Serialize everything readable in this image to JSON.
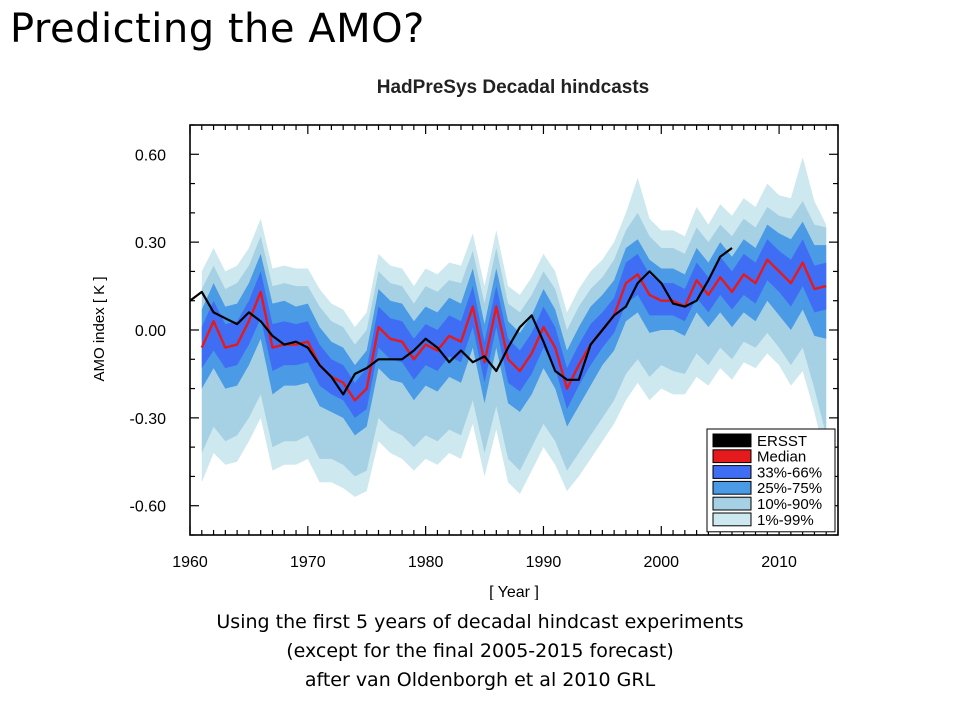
{
  "slide": {
    "title": "Predicting the AMO?",
    "caption": [
      "Using the first 5 years of decadal hindcast experiments",
      "(except for the final 2005-2015 forecast)",
      "after van Oldenborgh et al 2010 GRL"
    ]
  },
  "chart_data": {
    "type": "area",
    "title": "HadPreSys Decadal hindcasts",
    "xlabel": "[ Year ]",
    "ylabel": "AMO index [ K ]",
    "xlim": [
      1960,
      2015
    ],
    "ylim": [
      -0.7,
      0.7
    ],
    "xticks": [
      1960,
      1970,
      1980,
      1990,
      2000,
      2010
    ],
    "yticks": [
      -0.6,
      -0.3,
      0.0,
      0.3,
      0.6
    ],
    "ytick_labels": [
      "-0.60",
      "-0.30",
      "0.00",
      "0.30",
      "0.60"
    ],
    "legend_position": "bottom-right",
    "legend": [
      {
        "label": "ERSST",
        "color": "#000000"
      },
      {
        "label": "Median",
        "color": "#e41a1c"
      },
      {
        "label": "33%-66%",
        "color": "#3f6ef5"
      },
      {
        "label": "25%-75%",
        "color": "#4a9ae6"
      },
      {
        "label": "10%-90%",
        "color": "#a6d0e4"
      },
      {
        "label": "1%-99%",
        "color": "#cde8ef"
      }
    ],
    "x": [
      1961,
      1962,
      1963,
      1964,
      1965,
      1966,
      1967,
      1968,
      1969,
      1970,
      1971,
      1972,
      1973,
      1974,
      1975,
      1976,
      1977,
      1978,
      1979,
      1980,
      1981,
      1982,
      1983,
      1984,
      1985,
      1986,
      1987,
      1988,
      1989,
      1990,
      1991,
      1992,
      1993,
      1994,
      1995,
      1996,
      1997,
      1998,
      1999,
      2000,
      2001,
      2002,
      2003,
      2004,
      2005,
      2006,
      2007,
      2008,
      2009,
      2010,
      2011,
      2012,
      2013,
      2014
    ],
    "series": [
      {
        "name": "Median",
        "color": "#e41a1c",
        "values": [
          -0.06,
          0.03,
          -0.06,
          -0.05,
          0.03,
          0.13,
          -0.06,
          -0.05,
          -0.05,
          -0.04,
          -0.12,
          -0.16,
          -0.18,
          -0.24,
          -0.2,
          0.01,
          -0.03,
          -0.04,
          -0.1,
          -0.05,
          -0.07,
          -0.02,
          -0.04,
          0.08,
          -0.11,
          0.08,
          -0.1,
          -0.14,
          -0.08,
          0.01,
          -0.06,
          -0.2,
          -0.12,
          -0.05,
          0.0,
          0.05,
          0.16,
          0.19,
          0.12,
          0.1,
          0.1,
          0.08,
          0.17,
          0.12,
          0.18,
          0.13,
          0.19,
          0.16,
          0.24,
          0.2,
          0.16,
          0.23,
          0.14,
          0.15
        ]
      },
      {
        "name": "ERSST",
        "color": "#000000",
        "x": [
          1960,
          1961,
          1962,
          1963,
          1964,
          1965,
          1966,
          1967,
          1968,
          1969,
          1970,
          1971,
          1972,
          1973,
          1974,
          1975,
          1976,
          1977,
          1978,
          1979,
          1980,
          1981,
          1982,
          1983,
          1984,
          1985,
          1986,
          1987,
          1988,
          1989,
          1990,
          1991,
          1992,
          1993,
          1994,
          1995,
          1996,
          1997,
          1998,
          1999,
          2000,
          2001,
          2002,
          2003,
          2004,
          2005,
          2006
        ],
        "values": [
          0.1,
          0.13,
          0.06,
          0.04,
          0.02,
          0.06,
          0.03,
          -0.02,
          -0.05,
          -0.04,
          -0.06,
          -0.12,
          -0.16,
          -0.22,
          -0.15,
          -0.13,
          -0.1,
          -0.1,
          -0.1,
          -0.07,
          -0.03,
          -0.06,
          -0.11,
          -0.07,
          -0.11,
          -0.09,
          -0.14,
          -0.06,
          0.01,
          0.05,
          -0.04,
          -0.14,
          -0.17,
          -0.17,
          -0.05,
          0.0,
          0.05,
          0.08,
          0.16,
          0.2,
          0.16,
          0.09,
          0.08,
          0.1,
          0.17,
          0.25,
          0.28
        ]
      },
      {
        "name": "33%-66%",
        "color": "#3f6ef5",
        "lower": [
          -0.13,
          -0.07,
          -0.13,
          -0.12,
          -0.05,
          0.04,
          -0.14,
          -0.12,
          -0.12,
          -0.11,
          -0.19,
          -0.22,
          -0.24,
          -0.3,
          -0.27,
          -0.06,
          -0.1,
          -0.11,
          -0.17,
          -0.12,
          -0.14,
          -0.09,
          -0.11,
          0.01,
          -0.18,
          0.01,
          -0.18,
          -0.21,
          -0.15,
          -0.06,
          -0.13,
          -0.27,
          -0.19,
          -0.12,
          -0.06,
          -0.01,
          0.09,
          0.12,
          0.05,
          0.05,
          0.05,
          0.03,
          0.11,
          0.06,
          0.12,
          0.07,
          0.12,
          0.09,
          0.17,
          0.13,
          0.08,
          0.15,
          0.06,
          0.07
        ],
        "upper": [
          0.01,
          0.1,
          0.02,
          0.03,
          0.1,
          0.2,
          0.02,
          0.03,
          0.02,
          0.03,
          -0.05,
          -0.1,
          -0.12,
          -0.18,
          -0.13,
          0.08,
          0.04,
          0.03,
          -0.03,
          0.02,
          0.0,
          0.05,
          0.03,
          0.15,
          -0.04,
          0.15,
          -0.03,
          -0.07,
          -0.01,
          0.08,
          0.01,
          -0.13,
          -0.05,
          0.02,
          0.06,
          0.11,
          0.23,
          0.26,
          0.19,
          0.16,
          0.16,
          0.14,
          0.23,
          0.18,
          0.25,
          0.2,
          0.26,
          0.23,
          0.31,
          0.27,
          0.24,
          0.31,
          0.22,
          0.23
        ]
      },
      {
        "name": "25%-75%",
        "color": "#4a9ae6",
        "lower": [
          -0.2,
          -0.13,
          -0.2,
          -0.19,
          -0.12,
          -0.03,
          -0.22,
          -0.19,
          -0.19,
          -0.18,
          -0.26,
          -0.28,
          -0.3,
          -0.36,
          -0.33,
          -0.13,
          -0.17,
          -0.18,
          -0.24,
          -0.19,
          -0.21,
          -0.16,
          -0.18,
          -0.06,
          -0.25,
          -0.06,
          -0.25,
          -0.28,
          -0.22,
          -0.13,
          -0.2,
          -0.33,
          -0.26,
          -0.19,
          -0.12,
          -0.07,
          0.03,
          0.06,
          -0.01,
          0.0,
          0.0,
          -0.02,
          0.06,
          0.01,
          0.06,
          0.01,
          0.06,
          0.03,
          0.1,
          0.05,
          0.0,
          0.07,
          -0.02,
          -0.03
        ],
        "upper": [
          0.07,
          0.16,
          0.08,
          0.09,
          0.16,
          0.26,
          0.09,
          0.1,
          0.08,
          0.09,
          0.01,
          -0.04,
          -0.06,
          -0.12,
          -0.07,
          0.14,
          0.1,
          0.09,
          0.03,
          0.08,
          0.06,
          0.11,
          0.09,
          0.21,
          0.02,
          0.21,
          0.03,
          -0.01,
          0.05,
          0.14,
          0.07,
          -0.07,
          0.01,
          0.08,
          0.12,
          0.17,
          0.28,
          0.31,
          0.24,
          0.21,
          0.21,
          0.19,
          0.28,
          0.23,
          0.3,
          0.25,
          0.31,
          0.28,
          0.36,
          0.33,
          0.31,
          0.37,
          0.29,
          0.29
        ]
      },
      {
        "name": "10%-90%",
        "color": "#a6d0e4",
        "lower": [
          -0.42,
          -0.33,
          -0.38,
          -0.36,
          -0.3,
          -0.22,
          -0.4,
          -0.38,
          -0.38,
          -0.36,
          -0.44,
          -0.44,
          -0.46,
          -0.5,
          -0.48,
          -0.3,
          -0.34,
          -0.36,
          -0.4,
          -0.36,
          -0.38,
          -0.34,
          -0.36,
          -0.24,
          -0.42,
          -0.26,
          -0.44,
          -0.48,
          -0.4,
          -0.32,
          -0.38,
          -0.48,
          -0.42,
          -0.36,
          -0.3,
          -0.24,
          -0.15,
          -0.1,
          -0.16,
          -0.12,
          -0.14,
          -0.15,
          -0.08,
          -0.12,
          -0.06,
          -0.1,
          -0.04,
          -0.06,
          -0.01,
          -0.06,
          -0.12,
          -0.06,
          -0.2,
          -0.36
        ],
        "upper": [
          0.14,
          0.22,
          0.14,
          0.16,
          0.22,
          0.32,
          0.15,
          0.16,
          0.15,
          0.15,
          0.08,
          0.03,
          0.01,
          -0.05,
          0.0,
          0.2,
          0.16,
          0.15,
          0.09,
          0.15,
          0.13,
          0.17,
          0.16,
          0.27,
          0.09,
          0.28,
          0.09,
          0.06,
          0.12,
          0.2,
          0.14,
          0.0,
          0.08,
          0.14,
          0.18,
          0.24,
          0.34,
          0.4,
          0.32,
          0.28,
          0.28,
          0.26,
          0.35,
          0.3,
          0.36,
          0.32,
          0.38,
          0.35,
          0.42,
          0.39,
          0.38,
          0.44,
          0.36,
          0.35
        ]
      },
      {
        "name": "1%-99%",
        "color": "#cde8ef",
        "lower": [
          -0.52,
          -0.42,
          -0.46,
          -0.45,
          -0.38,
          -0.3,
          -0.48,
          -0.46,
          -0.46,
          -0.44,
          -0.52,
          -0.52,
          -0.54,
          -0.57,
          -0.55,
          -0.38,
          -0.42,
          -0.44,
          -0.48,
          -0.44,
          -0.46,
          -0.42,
          -0.44,
          -0.32,
          -0.5,
          -0.34,
          -0.52,
          -0.56,
          -0.48,
          -0.4,
          -0.46,
          -0.55,
          -0.5,
          -0.44,
          -0.38,
          -0.32,
          -0.24,
          -0.18,
          -0.24,
          -0.2,
          -0.22,
          -0.22,
          -0.16,
          -0.19,
          -0.13,
          -0.17,
          -0.11,
          -0.13,
          -0.08,
          -0.12,
          -0.19,
          -0.14,
          -0.28,
          -0.45
        ],
        "upper": [
          0.2,
          0.28,
          0.2,
          0.22,
          0.28,
          0.38,
          0.21,
          0.22,
          0.21,
          0.21,
          0.14,
          0.09,
          0.07,
          0.01,
          0.06,
          0.26,
          0.22,
          0.21,
          0.15,
          0.21,
          0.19,
          0.23,
          0.22,
          0.33,
          0.15,
          0.34,
          0.15,
          0.12,
          0.18,
          0.26,
          0.2,
          0.06,
          0.14,
          0.2,
          0.24,
          0.3,
          0.4,
          0.52,
          0.38,
          0.34,
          0.34,
          0.32,
          0.42,
          0.36,
          0.43,
          0.39,
          0.45,
          0.42,
          0.5,
          0.46,
          0.45,
          0.59,
          0.44,
          0.36
        ]
      }
    ]
  }
}
